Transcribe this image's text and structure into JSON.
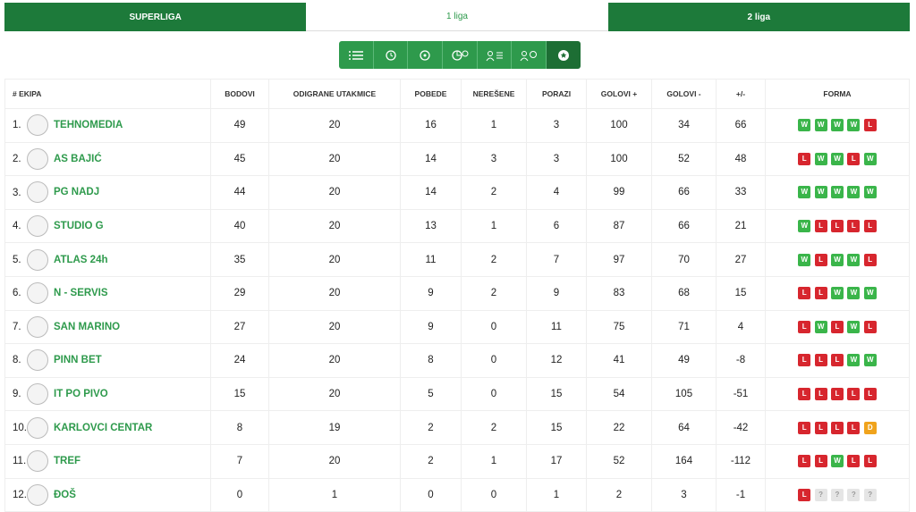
{
  "tabs": [
    "SUPERLIGA",
    "1 liga",
    "2 liga"
  ],
  "table": {
    "headers": [
      "# EKIPA",
      "BODOVI",
      "ODIGRANE UTAKMICE",
      "POBEDE",
      "NEREŠENE",
      "PORAZI",
      "GOLOVI +",
      "GOLOVI -",
      "+/-",
      "FORMA"
    ],
    "rows": [
      {
        "rank": "1.",
        "team": "TEHNOMEDIA",
        "stats": [
          49,
          20,
          16,
          1,
          3,
          100,
          34,
          66
        ],
        "form": [
          "W",
          "W",
          "W",
          "W",
          "L"
        ]
      },
      {
        "rank": "2.",
        "team": "AS BAJIĆ",
        "stats": [
          45,
          20,
          14,
          3,
          3,
          100,
          52,
          48
        ],
        "form": [
          "L",
          "W",
          "W",
          "L",
          "W"
        ]
      },
      {
        "rank": "3.",
        "team": "PG NADJ",
        "stats": [
          44,
          20,
          14,
          2,
          4,
          99,
          66,
          33
        ],
        "form": [
          "W",
          "W",
          "W",
          "W",
          "W"
        ]
      },
      {
        "rank": "4.",
        "team": "STUDIO G",
        "stats": [
          40,
          20,
          13,
          1,
          6,
          87,
          66,
          21
        ],
        "form": [
          "W",
          "L",
          "L",
          "L",
          "L"
        ]
      },
      {
        "rank": "5.",
        "team": "ATLAS 24h",
        "stats": [
          35,
          20,
          11,
          2,
          7,
          97,
          70,
          27
        ],
        "form": [
          "W",
          "L",
          "W",
          "W",
          "L"
        ]
      },
      {
        "rank": "6.",
        "team": "N - SERVIS",
        "stats": [
          29,
          20,
          9,
          2,
          9,
          83,
          68,
          15
        ],
        "form": [
          "L",
          "L",
          "W",
          "W",
          "W"
        ]
      },
      {
        "rank": "7.",
        "team": "SAN MARINO",
        "stats": [
          27,
          20,
          9,
          0,
          11,
          75,
          71,
          4
        ],
        "form": [
          "L",
          "W",
          "L",
          "W",
          "L"
        ]
      },
      {
        "rank": "8.",
        "team": "PINN BET",
        "stats": [
          24,
          20,
          8,
          0,
          12,
          41,
          49,
          -8
        ],
        "form": [
          "L",
          "L",
          "L",
          "W",
          "W"
        ]
      },
      {
        "rank": "9.",
        "team": "IT PO PIVO",
        "stats": [
          15,
          20,
          5,
          0,
          15,
          54,
          105,
          -51
        ],
        "form": [
          "L",
          "L",
          "L",
          "L",
          "L"
        ]
      },
      {
        "rank": "10.",
        "team": "KARLOVCI CENTAR",
        "stats": [
          8,
          19,
          2,
          2,
          15,
          22,
          64,
          -42
        ],
        "form": [
          "L",
          "L",
          "L",
          "L",
          "D"
        ]
      },
      {
        "rank": "11.",
        "team": "TREF",
        "stats": [
          7,
          20,
          2,
          1,
          17,
          52,
          164,
          -112
        ],
        "form": [
          "L",
          "L",
          "W",
          "L",
          "L"
        ]
      },
      {
        "rank": "12.",
        "team": "ĐOŠ",
        "stats": [
          0,
          1,
          0,
          0,
          1,
          2,
          3,
          -1
        ],
        "form": [
          "L",
          "?",
          "?",
          "?",
          "?"
        ]
      }
    ]
  }
}
